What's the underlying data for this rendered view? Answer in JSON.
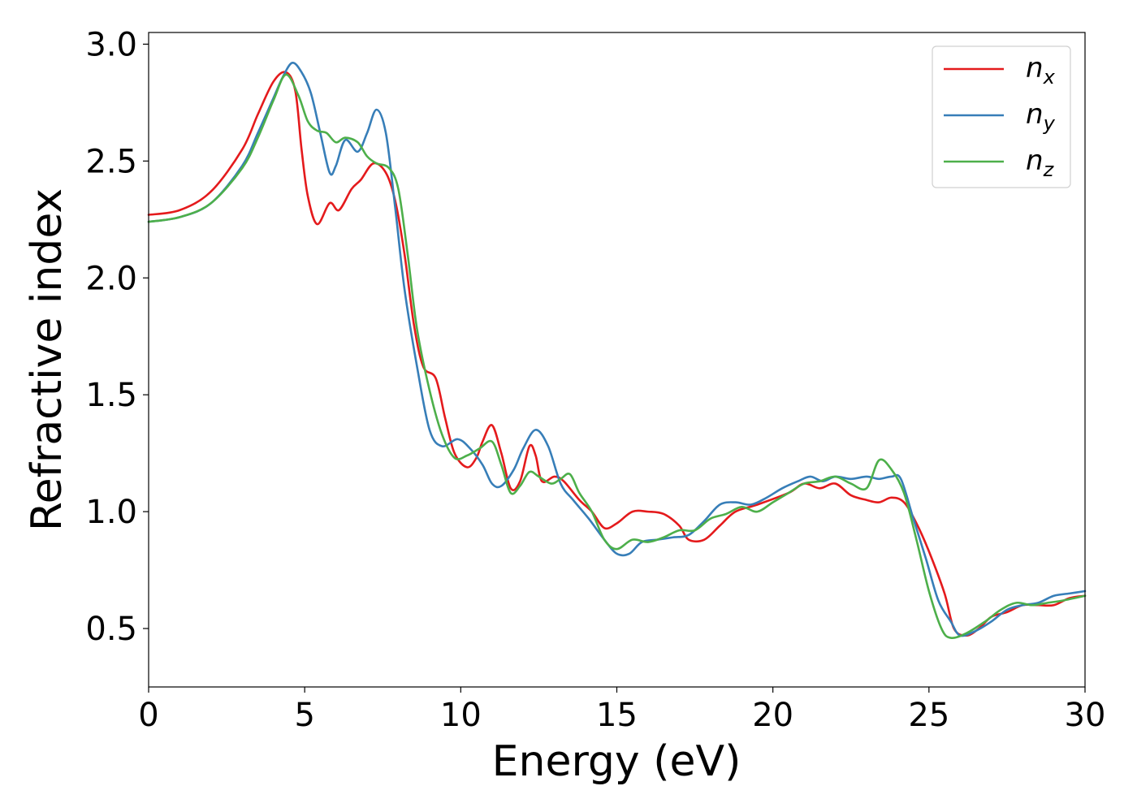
{
  "chart_data": {
    "type": "line",
    "xlabel": "Energy (eV)",
    "ylabel": "Refractive index",
    "xlim": [
      0,
      30
    ],
    "ylim": [
      0.25,
      3.05
    ],
    "xticks": [
      "0",
      "5",
      "10",
      "15",
      "20",
      "25",
      "30"
    ],
    "yticks": [
      "0.5",
      "1.0",
      "1.5",
      "2.0",
      "2.5",
      "3.0"
    ],
    "grid": false,
    "legend_position": "top-right",
    "series": [
      {
        "name": "n",
        "subscript": "x",
        "color": "#e41a1c",
        "points": [
          [
            0,
            2.27
          ],
          [
            1,
            2.29
          ],
          [
            2,
            2.37
          ],
          [
            3,
            2.55
          ],
          [
            3.5,
            2.7
          ],
          [
            4,
            2.84
          ],
          [
            4.4,
            2.88
          ],
          [
            4.7,
            2.8
          ],
          [
            4.9,
            2.55
          ],
          [
            5.1,
            2.35
          ],
          [
            5.4,
            2.23
          ],
          [
            5.8,
            2.32
          ],
          [
            6.1,
            2.29
          ],
          [
            6.5,
            2.38
          ],
          [
            6.8,
            2.42
          ],
          [
            7.2,
            2.49
          ],
          [
            7.6,
            2.45
          ],
          [
            7.9,
            2.33
          ],
          [
            8.2,
            2.1
          ],
          [
            8.5,
            1.8
          ],
          [
            8.8,
            1.62
          ],
          [
            9.2,
            1.57
          ],
          [
            9.5,
            1.4
          ],
          [
            9.8,
            1.25
          ],
          [
            10.2,
            1.19
          ],
          [
            10.5,
            1.23
          ],
          [
            10.7,
            1.3
          ],
          [
            11.0,
            1.37
          ],
          [
            11.3,
            1.25
          ],
          [
            11.6,
            1.1
          ],
          [
            11.9,
            1.13
          ],
          [
            12.2,
            1.28
          ],
          [
            12.4,
            1.24
          ],
          [
            12.6,
            1.13
          ],
          [
            13.0,
            1.15
          ],
          [
            13.3,
            1.13
          ],
          [
            13.8,
            1.05
          ],
          [
            14.2,
            1.0
          ],
          [
            14.6,
            0.93
          ],
          [
            15.0,
            0.95
          ],
          [
            15.5,
            1.0
          ],
          [
            16.0,
            1.0
          ],
          [
            16.5,
            0.99
          ],
          [
            17.0,
            0.94
          ],
          [
            17.3,
            0.88
          ],
          [
            17.8,
            0.88
          ],
          [
            18.3,
            0.94
          ],
          [
            18.8,
            1.0
          ],
          [
            19.5,
            1.03
          ],
          [
            20.5,
            1.08
          ],
          [
            21.0,
            1.12
          ],
          [
            21.5,
            1.1
          ],
          [
            22.0,
            1.12
          ],
          [
            22.5,
            1.07
          ],
          [
            23.0,
            1.05
          ],
          [
            23.4,
            1.04
          ],
          [
            23.8,
            1.06
          ],
          [
            24.2,
            1.04
          ],
          [
            24.6,
            0.95
          ],
          [
            25.0,
            0.83
          ],
          [
            25.5,
            0.65
          ],
          [
            25.8,
            0.5
          ],
          [
            26.2,
            0.47
          ],
          [
            26.6,
            0.5
          ],
          [
            27.0,
            0.55
          ],
          [
            27.5,
            0.57
          ],
          [
            28.0,
            0.6
          ],
          [
            28.5,
            0.6
          ],
          [
            29.0,
            0.6
          ],
          [
            29.5,
            0.63
          ],
          [
            30,
            0.64
          ]
        ]
      },
      {
        "name": "n",
        "subscript": "y",
        "color": "#377eb8",
        "points": [
          [
            0,
            2.24
          ],
          [
            1,
            2.26
          ],
          [
            2,
            2.32
          ],
          [
            3,
            2.48
          ],
          [
            3.5,
            2.62
          ],
          [
            4,
            2.77
          ],
          [
            4.3,
            2.86
          ],
          [
            4.6,
            2.92
          ],
          [
            4.9,
            2.88
          ],
          [
            5.2,
            2.79
          ],
          [
            5.5,
            2.62
          ],
          [
            5.8,
            2.45
          ],
          [
            6.0,
            2.48
          ],
          [
            6.3,
            2.59
          ],
          [
            6.7,
            2.54
          ],
          [
            7.0,
            2.62
          ],
          [
            7.3,
            2.72
          ],
          [
            7.6,
            2.62
          ],
          [
            7.9,
            2.3
          ],
          [
            8.2,
            1.95
          ],
          [
            8.6,
            1.62
          ],
          [
            9.0,
            1.35
          ],
          [
            9.4,
            1.28
          ],
          [
            9.9,
            1.31
          ],
          [
            10.3,
            1.27
          ],
          [
            10.7,
            1.2
          ],
          [
            11.0,
            1.12
          ],
          [
            11.3,
            1.11
          ],
          [
            11.7,
            1.18
          ],
          [
            12.0,
            1.27
          ],
          [
            12.4,
            1.35
          ],
          [
            12.8,
            1.28
          ],
          [
            13.2,
            1.12
          ],
          [
            13.6,
            1.05
          ],
          [
            14.1,
            0.97
          ],
          [
            14.6,
            0.88
          ],
          [
            15.0,
            0.82
          ],
          [
            15.4,
            0.82
          ],
          [
            15.8,
            0.87
          ],
          [
            16.3,
            0.88
          ],
          [
            16.8,
            0.89
          ],
          [
            17.3,
            0.9
          ],
          [
            17.8,
            0.96
          ],
          [
            18.3,
            1.03
          ],
          [
            18.8,
            1.04
          ],
          [
            19.3,
            1.03
          ],
          [
            19.8,
            1.06
          ],
          [
            20.3,
            1.1
          ],
          [
            20.8,
            1.13
          ],
          [
            21.2,
            1.15
          ],
          [
            21.6,
            1.13
          ],
          [
            22.0,
            1.15
          ],
          [
            22.5,
            1.14
          ],
          [
            23.0,
            1.15
          ],
          [
            23.4,
            1.14
          ],
          [
            23.8,
            1.15
          ],
          [
            24.1,
            1.14
          ],
          [
            24.5,
            0.97
          ],
          [
            24.9,
            0.8
          ],
          [
            25.3,
            0.62
          ],
          [
            25.7,
            0.53
          ],
          [
            26.0,
            0.47
          ],
          [
            26.5,
            0.49
          ],
          [
            27.0,
            0.53
          ],
          [
            27.5,
            0.58
          ],
          [
            28.0,
            0.6
          ],
          [
            28.5,
            0.61
          ],
          [
            29.0,
            0.64
          ],
          [
            29.5,
            0.65
          ],
          [
            30,
            0.66
          ]
        ]
      },
      {
        "name": "n",
        "subscript": "z",
        "color": "#4daf4a",
        "points": [
          [
            0,
            2.24
          ],
          [
            1,
            2.26
          ],
          [
            2,
            2.32
          ],
          [
            3,
            2.47
          ],
          [
            3.5,
            2.6
          ],
          [
            4,
            2.76
          ],
          [
            4.4,
            2.87
          ],
          [
            4.8,
            2.78
          ],
          [
            5.1,
            2.67
          ],
          [
            5.4,
            2.63
          ],
          [
            5.7,
            2.62
          ],
          [
            6.0,
            2.58
          ],
          [
            6.3,
            2.6
          ],
          [
            6.7,
            2.58
          ],
          [
            7.0,
            2.52
          ],
          [
            7.3,
            2.49
          ],
          [
            7.7,
            2.47
          ],
          [
            8.0,
            2.38
          ],
          [
            8.3,
            2.1
          ],
          [
            8.6,
            1.78
          ],
          [
            9.0,
            1.52
          ],
          [
            9.4,
            1.33
          ],
          [
            9.8,
            1.23
          ],
          [
            10.2,
            1.24
          ],
          [
            10.6,
            1.27
          ],
          [
            11.0,
            1.3
          ],
          [
            11.3,
            1.2
          ],
          [
            11.6,
            1.08
          ],
          [
            11.9,
            1.11
          ],
          [
            12.2,
            1.17
          ],
          [
            12.5,
            1.15
          ],
          [
            12.9,
            1.12
          ],
          [
            13.2,
            1.14
          ],
          [
            13.5,
            1.16
          ],
          [
            13.8,
            1.08
          ],
          [
            14.2,
            1.0
          ],
          [
            14.6,
            0.88
          ],
          [
            15.0,
            0.84
          ],
          [
            15.5,
            0.88
          ],
          [
            16.0,
            0.87
          ],
          [
            16.5,
            0.89
          ],
          [
            17.0,
            0.92
          ],
          [
            17.5,
            0.92
          ],
          [
            18.0,
            0.97
          ],
          [
            18.5,
            0.99
          ],
          [
            19.0,
            1.02
          ],
          [
            19.5,
            1.0
          ],
          [
            20.0,
            1.04
          ],
          [
            20.5,
            1.08
          ],
          [
            21.0,
            1.12
          ],
          [
            21.5,
            1.13
          ],
          [
            22.0,
            1.15
          ],
          [
            22.5,
            1.12
          ],
          [
            23.0,
            1.1
          ],
          [
            23.4,
            1.22
          ],
          [
            23.8,
            1.18
          ],
          [
            24.2,
            1.08
          ],
          [
            24.6,
            0.88
          ],
          [
            25.0,
            0.66
          ],
          [
            25.4,
            0.5
          ],
          [
            25.7,
            0.46
          ],
          [
            26.2,
            0.48
          ],
          [
            26.8,
            0.53
          ],
          [
            27.3,
            0.58
          ],
          [
            27.8,
            0.61
          ],
          [
            28.3,
            0.6
          ],
          [
            28.8,
            0.61
          ],
          [
            29.3,
            0.62
          ],
          [
            30,
            0.64
          ]
        ]
      }
    ]
  }
}
